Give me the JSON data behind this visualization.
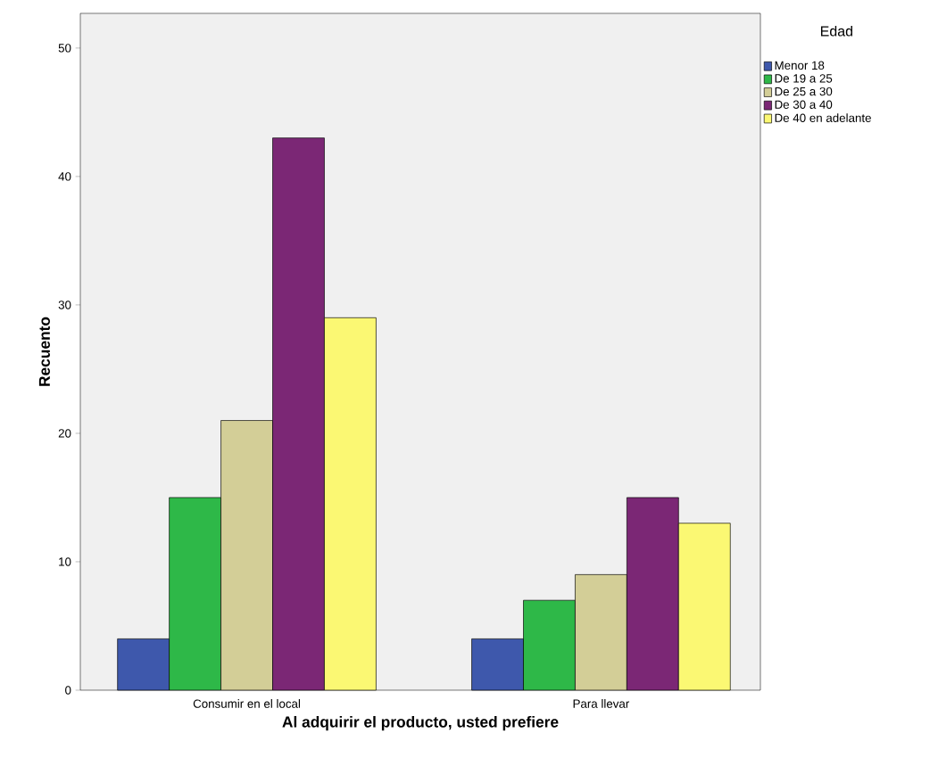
{
  "chart_data": {
    "type": "bar",
    "xlabel": "Al adquirir el producto, usted prefiere",
    "ylabel": "Recuento",
    "legend_title": "Edad",
    "categories": [
      "Consumir en el local",
      "Para llevar"
    ],
    "series": [
      {
        "name": "Menor 18",
        "color": "#3e58ac",
        "values": [
          4,
          4
        ]
      },
      {
        "name": "De 19 a 25",
        "color": "#2eb848",
        "values": [
          15,
          7
        ]
      },
      {
        "name": "De 25 a 30",
        "color": "#d3ce97",
        "values": [
          21,
          9
        ]
      },
      {
        "name": "De 30 a 40",
        "color": "#7b2775",
        "values": [
          43,
          15
        ]
      },
      {
        "name": "De 40 en adelante",
        "color": "#fbf873",
        "values": [
          29,
          13
        ]
      }
    ],
    "ylim": [
      0,
      52.7
    ],
    "yticks": [
      0,
      10,
      20,
      30,
      40,
      50
    ],
    "grid": false,
    "legend": "top right"
  }
}
